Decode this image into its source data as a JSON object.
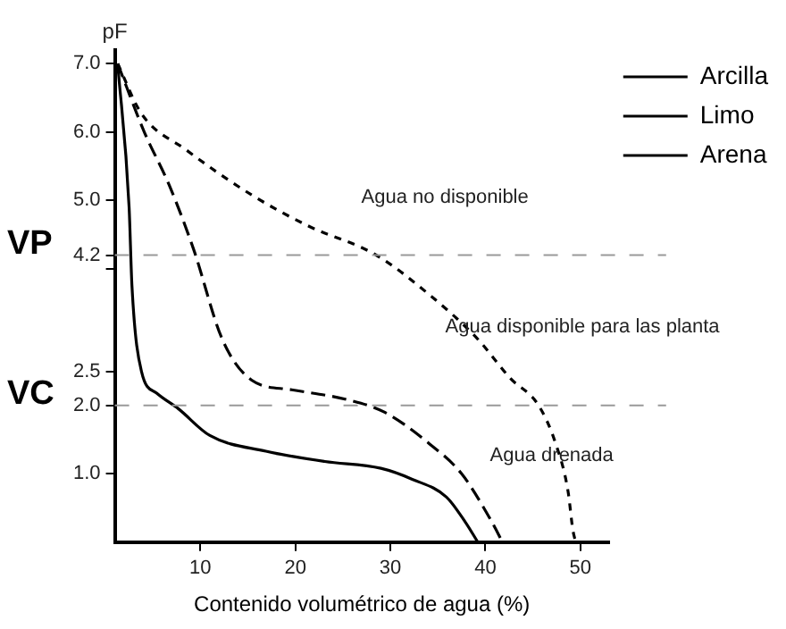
{
  "chart_data": {
    "type": "line",
    "ylabel": "pF",
    "xlabel": "Contenido volumétrico de agua (%)",
    "xlim": [
      1,
      53
    ],
    "xticks": [
      10,
      20,
      30,
      40,
      50
    ],
    "ylim": [
      0,
      7.2
    ],
    "yticks": [
      {
        "value": 1,
        "label": "1.0"
      },
      {
        "value": 2,
        "label": "2.0"
      },
      {
        "value": 2.5,
        "label": "2.5"
      },
      {
        "value": 4,
        "label": null
      },
      {
        "value": 4.2,
        "label": "4.2"
      },
      {
        "value": 5,
        "label": "5.0"
      },
      {
        "value": 6,
        "label": "6.0"
      },
      {
        "value": 7,
        "label": "7.0"
      }
    ],
    "series": [
      {
        "name": "Arcilla",
        "color": "#000000",
        "line_style": "dashed",
        "x": [
          1.3,
          3.8,
          8.5,
          15.4,
          21.3,
          28.5,
          34.1,
          39.2,
          42.6,
          45.6,
          47.4,
          48.7,
          49.2,
          49.5
        ],
        "values": [
          7,
          6.27,
          5.74,
          5.08,
          4.63,
          4.2,
          3.62,
          2.97,
          2.4,
          2,
          1.44,
          0.74,
          0.18,
          0
        ]
      },
      {
        "name": "Limo",
        "color": "#000000",
        "line_style": "dashed",
        "x": [
          1.3,
          4.1,
          6.7,
          9.3,
          12.3,
          15.4,
          19.6,
          25.6,
          29.4,
          34.1,
          37.5,
          40.5,
          41.8
        ],
        "values": [
          7,
          6,
          5.23,
          4.28,
          2.97,
          2.37,
          2.23,
          2.08,
          1.9,
          1.44,
          1,
          0.34,
          0
        ]
      },
      {
        "name": "Arena",
        "color": "#000000",
        "line_style": "solid",
        "x": [
          1.3,
          2.5,
          2.8,
          3.8,
          5.4,
          7.7,
          11,
          16.9,
          23.1,
          29,
          32.3,
          35.9,
          37.9,
          39.2
        ],
        "values": [
          7,
          4.9,
          3.75,
          2.5,
          2.18,
          1.95,
          1.56,
          1.33,
          1.18,
          1.08,
          0.92,
          0.66,
          0.29,
          0
        ]
      }
    ],
    "ref_lines": [
      {
        "axis": "y",
        "value": 4.2,
        "label": "VP",
        "color": "#999999",
        "line_style": "dashed"
      },
      {
        "axis": "y",
        "value": 2,
        "label": "VC",
        "color": "#999999",
        "line_style": "dashed"
      }
    ],
    "annotations": [
      "Agua no disponible",
      "Agua disponible para las planta",
      "Agua drenada"
    ],
    "legend": "right",
    "grid": false,
    "marker": "none"
  }
}
